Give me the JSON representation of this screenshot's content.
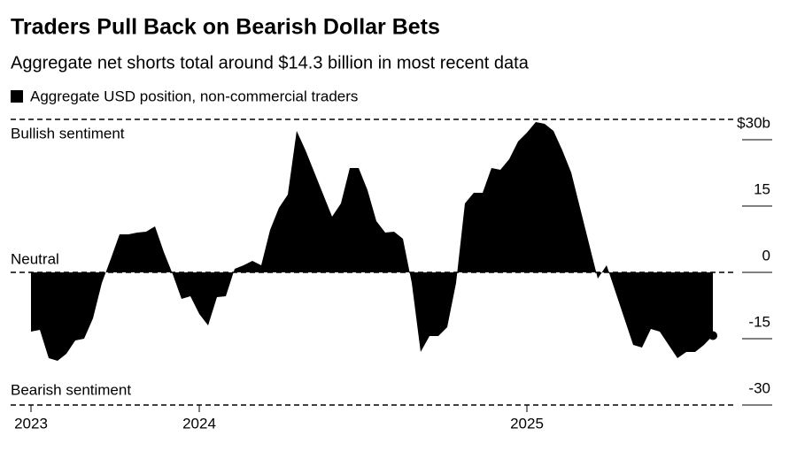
{
  "chart_data": {
    "type": "area",
    "title": "Traders Pull Back on Bearish Dollar Bets",
    "subtitle": "Aggregate net shorts total around $14.3 billion in most recent data",
    "annotations": [
      "Bullish sentiment",
      "Neutral",
      "Bearish sentiment"
    ],
    "categories": [
      "2023",
      null,
      null,
      null,
      null,
      null,
      null,
      null,
      null,
      null,
      null,
      null,
      null,
      null,
      null,
      null,
      null,
      null,
      null,
      "2024",
      null,
      null,
      null,
      null,
      null,
      null,
      null,
      null,
      null,
      null,
      null,
      null,
      null,
      null,
      null,
      null,
      null,
      null,
      null,
      null,
      null,
      null,
      null,
      null,
      null,
      null,
      null,
      null,
      null,
      null,
      null,
      null,
      null,
      null,
      null,
      null,
      "2025",
      null,
      null,
      null,
      null,
      null,
      null,
      null,
      null,
      null,
      null,
      null,
      null,
      null,
      null,
      null,
      null,
      null,
      null,
      null,
      null,
      null
    ],
    "series": [
      {
        "name": "Aggregate USD position, non-commercial traders",
        "color": "#000000",
        "values": [
          -13.4,
          -13,
          -19.4,
          -20,
          -18.4,
          -15.4,
          -15,
          -10.4,
          -2.4,
          3,
          8.6,
          8.6,
          9,
          9.2,
          10.4,
          4.6,
          -0.4,
          -6,
          -5.4,
          -9.4,
          -12,
          -5.6,
          -5.4,
          0.8,
          1.6,
          2.6,
          1.6,
          9.6,
          14.6,
          17.6,
          32,
          27.6,
          22.6,
          17.6,
          12.6,
          15.6,
          23.6,
          23.6,
          18.6,
          11.6,
          9,
          9.2,
          7.6,
          -2.4,
          -18,
          -14.4,
          -14.4,
          -12.4,
          -2.4,
          15.6,
          18,
          18,
          23.6,
          23.2,
          25.6,
          29.6,
          31.6,
          34,
          33.6,
          32,
          27.6,
          22.6,
          14.6,
          6.6,
          -1.4,
          1.6,
          -4.4,
          -10.4,
          -16.4,
          -17,
          -12.8,
          -13.4,
          -16.4,
          -19.4,
          -18,
          -18,
          -16.4,
          -14.3
        ]
      }
    ],
    "ylim": [
      -30,
      34.6
    ],
    "yticks": [
      {
        "value": 30,
        "label": "$30b"
      },
      15,
      0,
      -15,
      -30
    ]
  }
}
